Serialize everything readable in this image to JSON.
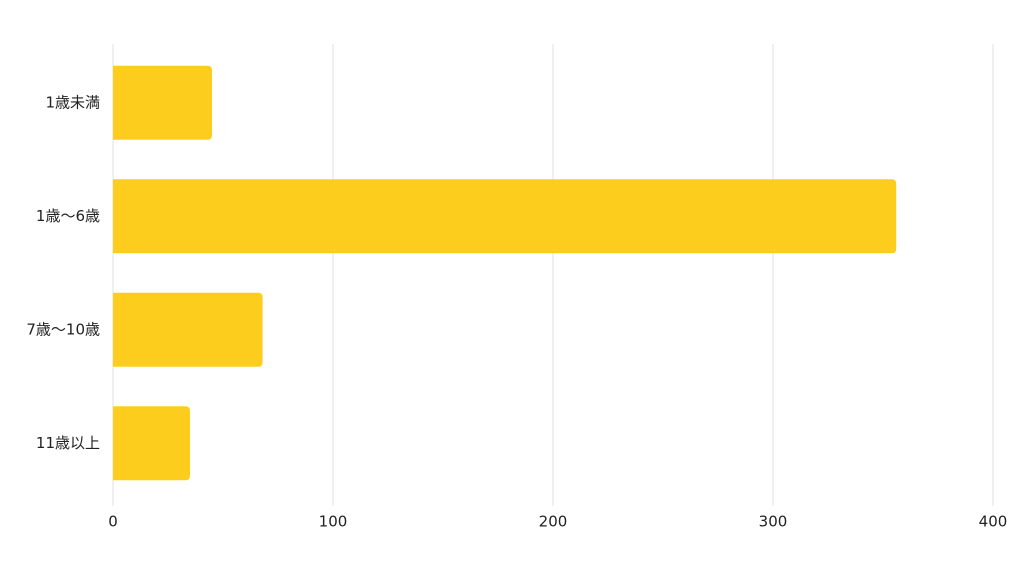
{
  "chart_data": {
    "type": "bar",
    "orientation": "horizontal",
    "categories": [
      "1歳未満",
      "1歳〜6歳",
      "7歳〜10歳",
      "11歳以上"
    ],
    "values": [
      45,
      356,
      68,
      35
    ],
    "color": "#fdcd1d",
    "xlim": [
      0,
      400
    ],
    "xticks": [
      0,
      100,
      200,
      300,
      400
    ],
    "grid": true
  }
}
